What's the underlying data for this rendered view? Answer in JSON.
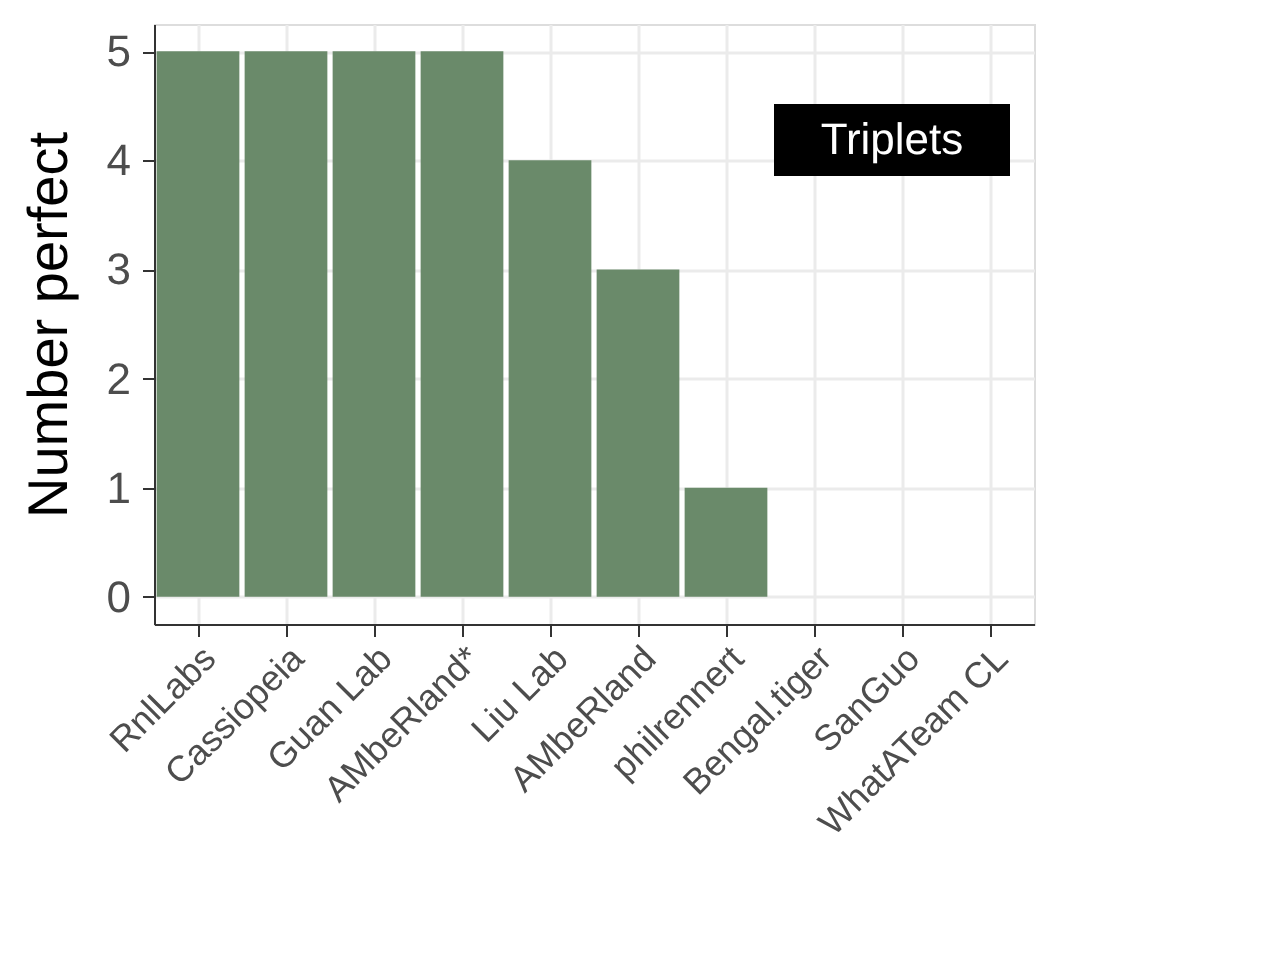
{
  "chart_data": {
    "type": "bar",
    "ylabel": "Number perfect",
    "categories": [
      "RnlLabs",
      "Cassiopeia",
      "Guan Lab",
      "AMbeRland*",
      "Liu Lab",
      "AMbeRland",
      "philrennert",
      "Bengal.tiger",
      "SanGuo",
      "WhatATeam CL"
    ],
    "values": [
      5,
      5,
      5,
      5,
      4,
      3,
      1,
      0,
      0,
      0
    ],
    "color": "#6a8a6a",
    "ylim": [
      -0.25,
      5.25
    ],
    "yticks": [
      0,
      1,
      2,
      3,
      4,
      5
    ],
    "grid": true,
    "annotations": [
      "Triplets"
    ]
  }
}
